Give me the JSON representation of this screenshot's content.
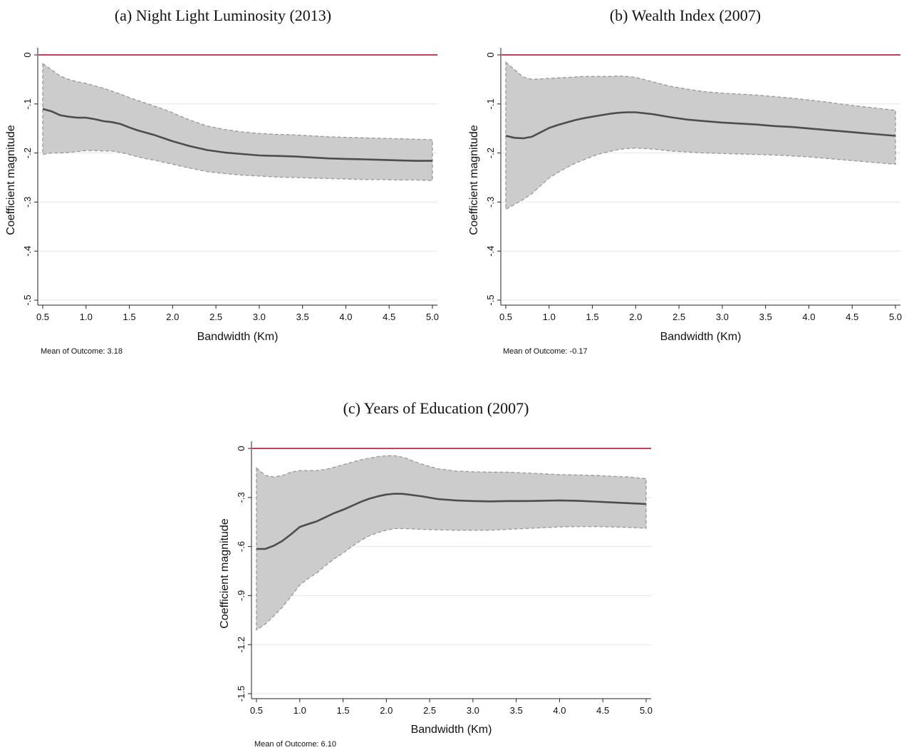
{
  "chart_data": [
    {
      "type": "line",
      "title": "(a) Night Light Luminosity (2013)",
      "xlabel": "Bandwidth (Km)",
      "ylabel": "Coefficient magnitude",
      "note": "Mean of Outcome: 3.18",
      "xlim": [
        0.5,
        5.0
      ],
      "ylim": [
        -0.5,
        0
      ],
      "xticks": [
        "0.5",
        "1.0",
        "1.5",
        "2.0",
        "2.5",
        "3.0",
        "3.5",
        "4.0",
        "4.5",
        "5.0"
      ],
      "yticks": [
        "0",
        "-.1",
        "-.2",
        "-.3",
        "-.4",
        "-.5"
      ],
      "grid": true,
      "reference_line": 0,
      "colors": {
        "line": "#4d4d4d",
        "band": "#cccccc",
        "band_edge": "#999999",
        "reference": "#b0001e"
      },
      "x": [
        0.5,
        0.6,
        0.7,
        0.8,
        0.9,
        1.0,
        1.1,
        1.2,
        1.3,
        1.4,
        1.5,
        1.6,
        1.7,
        1.8,
        1.9,
        2.0,
        2.2,
        2.4,
        2.6,
        2.8,
        3.0,
        3.2,
        3.4,
        3.6,
        3.8,
        4.0,
        4.2,
        4.4,
        4.6,
        4.8,
        5.0
      ],
      "series": [
        {
          "role": "estimate",
          "values": [
            -0.11,
            -0.115,
            -0.123,
            -0.126,
            -0.128,
            -0.128,
            -0.131,
            -0.135,
            -0.137,
            -0.141,
            -0.148,
            -0.154,
            -0.159,
            -0.164,
            -0.17,
            -0.176,
            -0.186,
            -0.194,
            -0.199,
            -0.202,
            -0.205,
            -0.206,
            -0.207,
            -0.209,
            -0.211,
            -0.212,
            -0.213,
            -0.214,
            -0.215,
            -0.216,
            -0.216
          ]
        },
        {
          "role": "ci_upper",
          "values": [
            -0.018,
            -0.03,
            -0.043,
            -0.05,
            -0.055,
            -0.058,
            -0.063,
            -0.068,
            -0.074,
            -0.08,
            -0.087,
            -0.093,
            -0.099,
            -0.105,
            -0.111,
            -0.118,
            -0.133,
            -0.145,
            -0.152,
            -0.157,
            -0.16,
            -0.162,
            -0.163,
            -0.165,
            -0.167,
            -0.168,
            -0.169,
            -0.17,
            -0.171,
            -0.172,
            -0.173
          ]
        },
        {
          "role": "ci_lower",
          "values": [
            -0.203,
            -0.2,
            -0.2,
            -0.199,
            -0.197,
            -0.195,
            -0.195,
            -0.196,
            -0.196,
            -0.199,
            -0.203,
            -0.208,
            -0.212,
            -0.215,
            -0.219,
            -0.223,
            -0.231,
            -0.238,
            -0.242,
            -0.245,
            -0.247,
            -0.249,
            -0.25,
            -0.251,
            -0.252,
            -0.253,
            -0.254,
            -0.254,
            -0.255,
            -0.255,
            -0.256
          ]
        }
      ]
    },
    {
      "type": "line",
      "title": "(b) Wealth Index (2007)",
      "xlabel": "Bandwidth (Km)",
      "ylabel": "Coefficient magnitude",
      "note": "Mean of Outcome: -0.17",
      "xlim": [
        0.5,
        5.0
      ],
      "ylim": [
        -0.5,
        0
      ],
      "xticks": [
        "0.5",
        "1.0",
        "1.5",
        "2.0",
        "2.5",
        "3.0",
        "3.5",
        "4.0",
        "4.5",
        "5.0"
      ],
      "yticks": [
        "0",
        "-.1",
        "-.2",
        "-.3",
        "-.4",
        "-.5"
      ],
      "grid": true,
      "reference_line": 0,
      "colors": {
        "line": "#4d4d4d",
        "band": "#cccccc",
        "band_edge": "#999999",
        "reference": "#b0001e"
      },
      "x": [
        0.5,
        0.6,
        0.7,
        0.8,
        0.9,
        1.0,
        1.1,
        1.2,
        1.3,
        1.4,
        1.5,
        1.6,
        1.7,
        1.8,
        1.9,
        2.0,
        2.2,
        2.4,
        2.6,
        2.8,
        3.0,
        3.2,
        3.4,
        3.6,
        3.8,
        4.0,
        4.2,
        4.4,
        4.6,
        4.8,
        5.0
      ],
      "series": [
        {
          "role": "estimate",
          "values": [
            -0.165,
            -0.169,
            -0.17,
            -0.167,
            -0.158,
            -0.149,
            -0.143,
            -0.138,
            -0.133,
            -0.129,
            -0.126,
            -0.123,
            -0.12,
            -0.118,
            -0.117,
            -0.117,
            -0.121,
            -0.127,
            -0.132,
            -0.135,
            -0.138,
            -0.14,
            -0.142,
            -0.145,
            -0.147,
            -0.15,
            -0.153,
            -0.156,
            -0.159,
            -0.162,
            -0.165
          ]
        },
        {
          "role": "ci_upper",
          "values": [
            -0.015,
            -0.03,
            -0.045,
            -0.05,
            -0.049,
            -0.048,
            -0.047,
            -0.046,
            -0.045,
            -0.044,
            -0.044,
            -0.044,
            -0.044,
            -0.043,
            -0.044,
            -0.046,
            -0.055,
            -0.064,
            -0.07,
            -0.075,
            -0.078,
            -0.08,
            -0.082,
            -0.085,
            -0.088,
            -0.092,
            -0.096,
            -0.101,
            -0.105,
            -0.109,
            -0.113
          ]
        },
        {
          "role": "ci_lower",
          "values": [
            -0.315,
            -0.305,
            -0.295,
            -0.283,
            -0.267,
            -0.251,
            -0.24,
            -0.23,
            -0.221,
            -0.214,
            -0.207,
            -0.201,
            -0.197,
            -0.193,
            -0.191,
            -0.19,
            -0.192,
            -0.196,
            -0.198,
            -0.2,
            -0.201,
            -0.202,
            -0.203,
            -0.204,
            -0.206,
            -0.208,
            -0.211,
            -0.214,
            -0.217,
            -0.22,
            -0.223
          ]
        }
      ]
    },
    {
      "type": "line",
      "title": "(c) Years of Education (2007)",
      "xlabel": "Bandwidth (Km)",
      "ylabel": "Coefficient magnitude",
      "note": "Mean of Outcome: 6.10",
      "xlim": [
        0.5,
        5.0
      ],
      "ylim": [
        -1.5,
        0
      ],
      "xticks": [
        "0.5",
        "1.0",
        "1.5",
        "2.0",
        "2.5",
        "3.0",
        "3.5",
        "4.0",
        "4.5",
        "5.0"
      ],
      "yticks": [
        "0",
        "-.3",
        "-.6",
        "-.9",
        "-1.2",
        "-1.5"
      ],
      "grid": true,
      "reference_line": 0,
      "colors": {
        "line": "#4d4d4d",
        "band": "#cccccc",
        "band_edge": "#999999",
        "reference": "#b0001e"
      },
      "x": [
        0.5,
        0.6,
        0.7,
        0.8,
        0.9,
        1.0,
        1.1,
        1.2,
        1.3,
        1.4,
        1.5,
        1.6,
        1.7,
        1.8,
        1.9,
        2.0,
        2.1,
        2.2,
        2.4,
        2.6,
        2.8,
        3.0,
        3.2,
        3.4,
        3.6,
        3.8,
        4.0,
        4.2,
        4.4,
        4.6,
        4.8,
        5.0
      ],
      "series": [
        {
          "role": "estimate",
          "values": [
            -0.615,
            -0.615,
            -0.595,
            -0.565,
            -0.525,
            -0.48,
            -0.462,
            -0.445,
            -0.42,
            -0.395,
            -0.375,
            -0.352,
            -0.328,
            -0.308,
            -0.293,
            -0.282,
            -0.277,
            -0.278,
            -0.292,
            -0.31,
            -0.318,
            -0.322,
            -0.324,
            -0.322,
            -0.322,
            -0.32,
            -0.318,
            -0.32,
            -0.325,
            -0.33,
            -0.335,
            -0.34
          ]
        },
        {
          "role": "ci_upper",
          "values": [
            -0.12,
            -0.165,
            -0.175,
            -0.165,
            -0.145,
            -0.135,
            -0.135,
            -0.135,
            -0.128,
            -0.115,
            -0.1,
            -0.085,
            -0.07,
            -0.06,
            -0.05,
            -0.045,
            -0.045,
            -0.055,
            -0.095,
            -0.125,
            -0.138,
            -0.143,
            -0.145,
            -0.145,
            -0.15,
            -0.155,
            -0.16,
            -0.162,
            -0.165,
            -0.17,
            -0.175,
            -0.185
          ]
        },
        {
          "role": "ci_lower",
          "values": [
            -1.11,
            -1.075,
            -1.025,
            -0.97,
            -0.905,
            -0.835,
            -0.795,
            -0.76,
            -0.715,
            -0.675,
            -0.64,
            -0.6,
            -0.565,
            -0.535,
            -0.515,
            -0.5,
            -0.49,
            -0.49,
            -0.495,
            -0.498,
            -0.5,
            -0.5,
            -0.5,
            -0.495,
            -0.49,
            -0.485,
            -0.48,
            -0.478,
            -0.478,
            -0.48,
            -0.483,
            -0.488
          ]
        }
      ]
    }
  ]
}
